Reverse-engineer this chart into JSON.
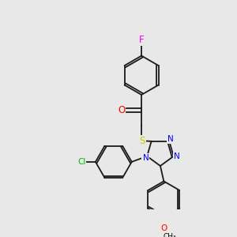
{
  "background_color": "#e8e8e8",
  "figure_size": [
    3.0,
    3.0
  ],
  "dpi": 100,
  "bond_color": "#1a1a1a",
  "bond_lw": 1.3,
  "atom_colors": {
    "F": "#ee00ee",
    "Cl": "#00bb00",
    "O": "#ff0000",
    "N": "#0000ff",
    "S": "#cccc00"
  },
  "font_size": 7.5,
  "font_size_small": 6.5
}
